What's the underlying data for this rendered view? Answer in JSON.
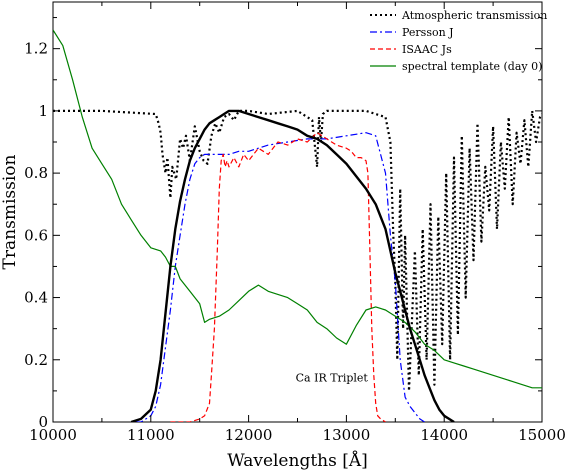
{
  "chart_data": {
    "type": "line",
    "title": "",
    "xlabel": "Wavelengths [Å]",
    "ylabel": "Transmission",
    "xlim": [
      10000,
      15000
    ],
    "ylim": [
      0,
      1.35
    ],
    "xticks": [
      10000,
      11000,
      12000,
      13000,
      14000,
      15000
    ],
    "yticks": [
      0,
      0.2,
      0.4,
      0.6,
      0.8,
      1,
      1.2
    ],
    "xtick_labels": [
      "10000",
      "11000",
      "12000",
      "13000",
      "14000",
      "15000"
    ],
    "ytick_labels": [
      "0",
      "0.2",
      "0.4",
      "0.6",
      "0.8",
      "1",
      "1.2"
    ],
    "grid": false,
    "legend_position": "top-right",
    "annotations": [
      {
        "text": "Ca IR Triplet",
        "x": 12850,
        "y": 0.13
      }
    ],
    "series": [
      {
        "name": "Atmospheric transmission",
        "color": "#000000",
        "dash": "dotted",
        "width": 2.2,
        "x": [
          10000,
          10500,
          11050,
          11080,
          11100,
          11120,
          11150,
          11170,
          11200,
          11220,
          11260,
          11300,
          11330,
          11360,
          11400,
          11450,
          11500,
          11540,
          11580,
          11620,
          11660,
          11700,
          11750,
          11800,
          11850,
          11900,
          12000,
          12200,
          12500,
          12650,
          12700,
          12720,
          12740,
          12760,
          12800,
          13000,
          13200,
          13300,
          13400,
          13450,
          13480,
          13500,
          13520,
          13550,
          13580,
          13600,
          13640,
          13680,
          13700,
          13740,
          13780,
          13820,
          13860,
          13900,
          13940,
          13980,
          14020,
          14060,
          14100,
          14140,
          14180,
          14220,
          14260,
          14300,
          14340,
          14380,
          14420,
          14460,
          14500,
          14540,
          14580,
          14620,
          14660,
          14700,
          14740,
          14780,
          14820,
          14860,
          14900,
          14940,
          14980,
          15000
        ],
        "y": [
          1.0,
          1.0,
          0.99,
          0.96,
          0.93,
          0.86,
          0.8,
          0.85,
          0.72,
          0.82,
          0.78,
          0.91,
          0.88,
          0.92,
          0.84,
          0.95,
          0.87,
          0.84,
          0.83,
          0.92,
          0.96,
          0.93,
          0.98,
          0.99,
          0.97,
          1.0,
          1.0,
          0.99,
          1.0,
          0.97,
          0.82,
          0.98,
          0.9,
          0.99,
          1.0,
          1.0,
          1.0,
          0.99,
          0.98,
          0.9,
          0.6,
          0.45,
          0.2,
          0.75,
          0.3,
          0.6,
          0.1,
          0.4,
          0.55,
          0.15,
          0.62,
          0.2,
          0.7,
          0.12,
          0.66,
          0.25,
          0.8,
          0.2,
          0.85,
          0.28,
          0.92,
          0.4,
          0.88,
          0.52,
          0.96,
          0.58,
          0.82,
          0.68,
          0.95,
          0.62,
          0.9,
          0.75,
          0.98,
          0.7,
          0.93,
          0.83,
          0.97,
          0.82,
          1.0,
          0.9,
          0.98,
          0.99
        ]
      },
      {
        "name": "Persson J",
        "color": "#0000ff",
        "dash": "dashdot",
        "width": 1.2,
        "x": [
          10850,
          10900,
          10950,
          11000,
          11050,
          11100,
          11150,
          11200,
          11250,
          11300,
          11350,
          11400,
          11450,
          11500,
          11550,
          11600,
          11650,
          11700,
          11750,
          11800,
          11900,
          12000,
          12200,
          12400,
          12600,
          12800,
          13000,
          13200,
          13300,
          13400,
          13450,
          13500,
          13550,
          13600,
          13650,
          13700,
          13750,
          13800
        ],
        "y": [
          0.0,
          0.0,
          0.01,
          0.02,
          0.05,
          0.12,
          0.24,
          0.36,
          0.5,
          0.6,
          0.7,
          0.78,
          0.83,
          0.85,
          0.86,
          0.86,
          0.86,
          0.86,
          0.86,
          0.86,
          0.87,
          0.87,
          0.89,
          0.9,
          0.91,
          0.91,
          0.92,
          0.93,
          0.92,
          0.8,
          0.6,
          0.45,
          0.2,
          0.08,
          0.05,
          0.03,
          0.01,
          0.0
        ]
      },
      {
        "name": "ISAAC Js",
        "color": "#ff0000",
        "dash": "dashed",
        "width": 1.2,
        "x": [
          11200,
          11400,
          11500,
          11550,
          11600,
          11620,
          11650,
          11680,
          11700,
          11720,
          11740,
          11760,
          11780,
          11800,
          11850,
          11900,
          11950,
          12000,
          12100,
          12200,
          12300,
          12400,
          12500,
          12600,
          12700,
          12800,
          12900,
          13000,
          13050,
          13100,
          13150,
          13200,
          13220,
          13240,
          13260,
          13280,
          13300,
          13320,
          13350,
          13400
        ],
        "y": [
          0.0,
          0.0,
          0.01,
          0.02,
          0.06,
          0.15,
          0.3,
          0.55,
          0.75,
          0.84,
          0.86,
          0.82,
          0.84,
          0.82,
          0.85,
          0.82,
          0.86,
          0.84,
          0.88,
          0.86,
          0.9,
          0.89,
          0.91,
          0.9,
          0.93,
          0.91,
          0.89,
          0.88,
          0.87,
          0.85,
          0.85,
          0.84,
          0.8,
          0.55,
          0.3,
          0.15,
          0.06,
          0.02,
          0.01,
          0.0
        ]
      },
      {
        "name": "spectral template (day 0)",
        "color": "#008000",
        "dash": "solid",
        "width": 1.2,
        "x": [
          10000,
          10100,
          10200,
          10300,
          10400,
          10500,
          10600,
          10700,
          10800,
          10900,
          11000,
          11100,
          11150,
          11200,
          11250,
          11300,
          11400,
          11500,
          11550,
          11600,
          11700,
          11800,
          11900,
          12000,
          12100,
          12200,
          12300,
          12400,
          12500,
          12600,
          12700,
          12800,
          12900,
          13000,
          13100,
          13200,
          13300,
          13400,
          13500,
          13600,
          13700,
          13800,
          13900,
          14000,
          14100,
          14200,
          14300,
          14400,
          14500,
          14600,
          14700,
          14800,
          14900,
          15000
        ],
        "y": [
          1.26,
          1.21,
          1.1,
          0.98,
          0.88,
          0.83,
          0.78,
          0.7,
          0.65,
          0.6,
          0.56,
          0.55,
          0.53,
          0.5,
          0.5,
          0.46,
          0.42,
          0.38,
          0.32,
          0.33,
          0.34,
          0.36,
          0.39,
          0.42,
          0.44,
          0.42,
          0.41,
          0.4,
          0.38,
          0.36,
          0.32,
          0.3,
          0.27,
          0.25,
          0.31,
          0.36,
          0.37,
          0.36,
          0.34,
          0.32,
          0.29,
          0.25,
          0.23,
          0.2,
          0.19,
          0.18,
          0.17,
          0.16,
          0.15,
          0.14,
          0.13,
          0.12,
          0.11,
          0.11
        ]
      },
      {
        "name": "",
        "color": "#000000",
        "dash": "solid",
        "width": 2.4,
        "x": [
          10800,
          10900,
          11000,
          11050,
          11100,
          11150,
          11200,
          11250,
          11300,
          11350,
          11400,
          11450,
          11500,
          11550,
          11600,
          11650,
          11700,
          11750,
          11800,
          11850,
          11900,
          12000,
          12100,
          12200,
          12300,
          12400,
          12500,
          12600,
          12700,
          12800,
          12900,
          13000,
          13100,
          13200,
          13300,
          13400,
          13450,
          13500,
          13550,
          13600,
          13650,
          13700,
          13750,
          13800,
          13850,
          13900,
          13950,
          14000,
          14050,
          14100
        ],
        "y": [
          0.0,
          0.01,
          0.04,
          0.1,
          0.2,
          0.35,
          0.5,
          0.62,
          0.71,
          0.78,
          0.84,
          0.88,
          0.91,
          0.94,
          0.96,
          0.97,
          0.98,
          0.99,
          1.0,
          1.0,
          1.0,
          0.99,
          0.98,
          0.97,
          0.96,
          0.95,
          0.94,
          0.92,
          0.91,
          0.89,
          0.86,
          0.83,
          0.79,
          0.75,
          0.7,
          0.62,
          0.55,
          0.48,
          0.42,
          0.36,
          0.3,
          0.25,
          0.2,
          0.15,
          0.11,
          0.07,
          0.04,
          0.02,
          0.01,
          0.0
        ]
      }
    ]
  }
}
